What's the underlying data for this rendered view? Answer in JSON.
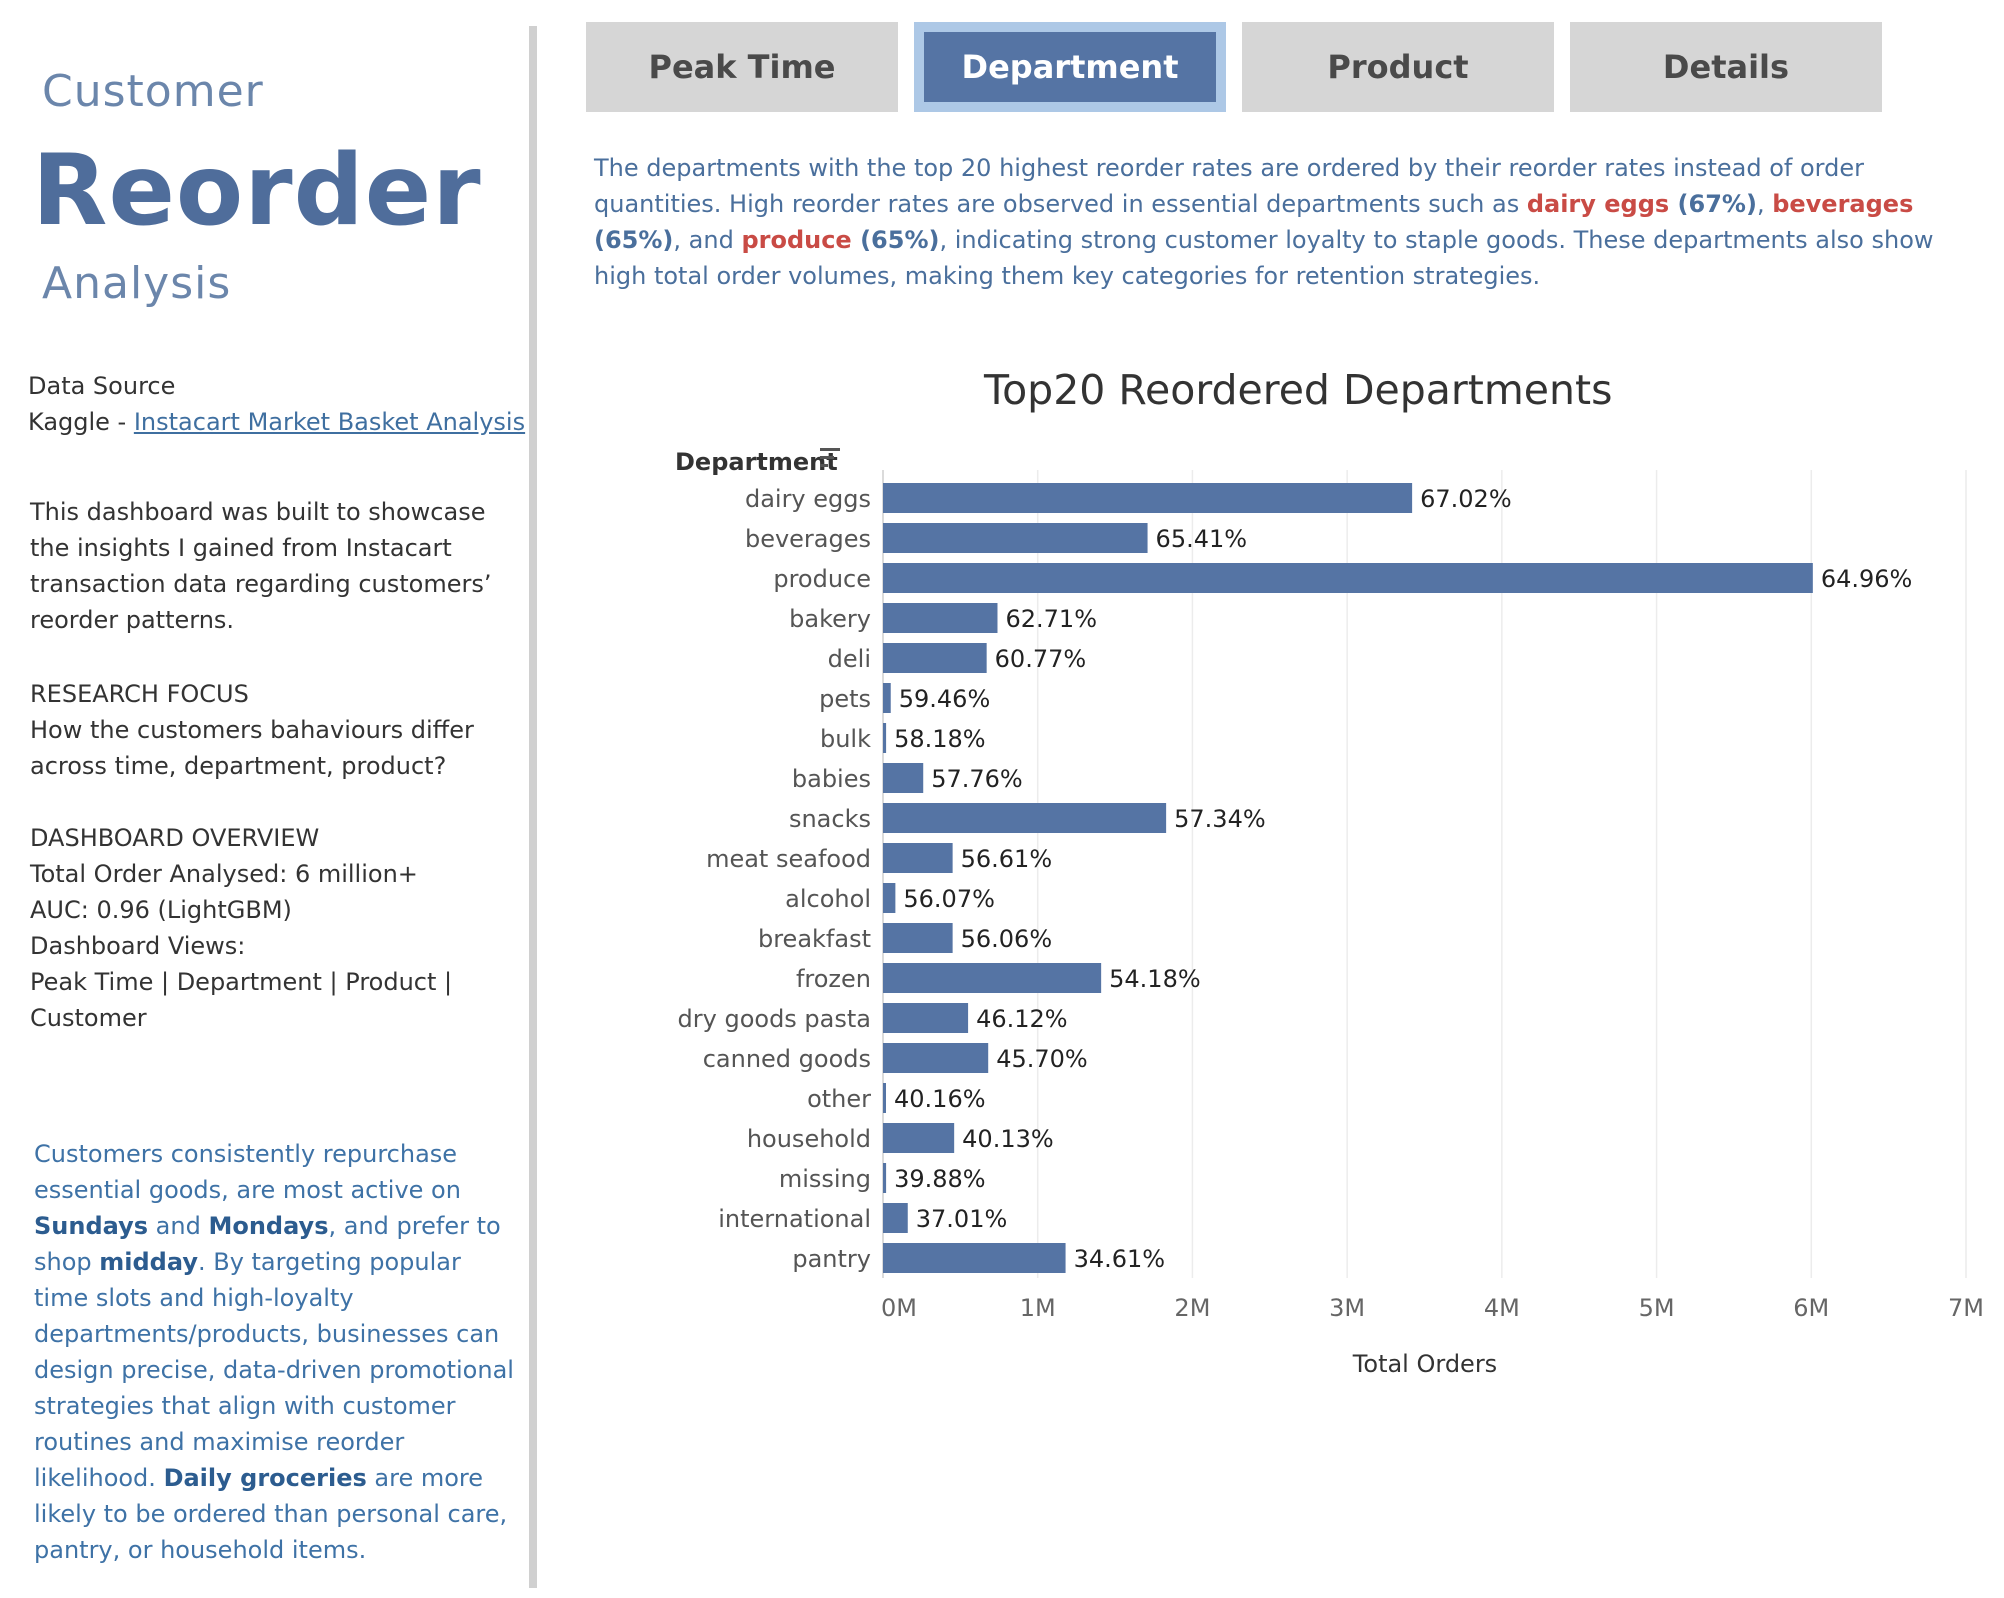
{
  "sidebar": {
    "title_line1": "Customer",
    "title_line2": "Reorder",
    "title_line3": "Analysis",
    "data_source_label": "Data Source",
    "data_source_prefix": "Kaggle - ",
    "data_source_link": "Instacart Market Basket Analysis",
    "intro": "This dashboard was built to showcase the insights I gained from Instacart transaction data regarding customers’ reorder patterns.",
    "research_focus_heading": "RESEARCH FOCUS",
    "research_focus_text": "How the customers bahaviours differ across time, department, product?",
    "overview_heading": "DASHBOARD OVERVIEW",
    "overview_total": "Total Order Analysed: 6 million+",
    "overview_auc": "AUC: 0.96 (LightGBM)",
    "overview_views_label": "Dashboard Views:",
    "overview_views": "Peak Time | Department | Product | Customer",
    "insight_1": "Customers consistently repurchase essential goods, are most active on ",
    "insight_b1": "Sundays",
    "insight_2": " and ",
    "insight_b2": "Mondays",
    "insight_3": ", and prefer to shop ",
    "insight_b3": "midday",
    "insight_4": ". By targeting popular time slots and high-loyalty departments/products, businesses can design precise, data-driven promotional strategies that align with customer routines and maximise reorder likelihood. ",
    "insight_b4": "Daily groceries",
    "insight_5": " are more likely to be ordered than personal care, pantry, or household items."
  },
  "tabs": [
    {
      "label": "Peak Time",
      "active": false
    },
    {
      "label": "Department",
      "active": true
    },
    {
      "label": "Product",
      "active": false
    },
    {
      "label": "Details",
      "active": false
    }
  ],
  "description": {
    "part1": "The departments with the top 20 highest reorder rates are ordered by their reorder rates instead of order quantities. High reorder rates are observed in essential departments such as ",
    "dept1": "dairy eggs",
    "pct1": " (67%)",
    "sep1": ", ",
    "dept2": "beverages",
    "pct2": " (65%)",
    "sep2": ", and ",
    "dept3": "produce",
    "pct3": " (65%)",
    "part2": ", indicating strong customer loyalty to staple goods. These departments also show high total order volumes, making them key categories for retention strategies."
  },
  "colors": {
    "bar": "#5574a4",
    "accent_red": "#c94b45",
    "tab_active_border": "#adc8e6",
    "tab_inactive": "#d6d6d6"
  },
  "chart_data": {
    "type": "bar",
    "orientation": "horizontal",
    "title": "Top20 Reordered Departments",
    "category_header": "Department",
    "xlabel": "Total Orders",
    "xlim": [
      0,
      7000000
    ],
    "x_ticks": [
      "0M",
      "1M",
      "2M",
      "3M",
      "4M",
      "5M",
      "6M",
      "7M"
    ],
    "grid": true,
    "categories": [
      "dairy eggs",
      "beverages",
      "produce",
      "bakery",
      "deli",
      "pets",
      "bulk",
      "babies",
      "snacks",
      "meat seafood",
      "alcohol",
      "breakfast",
      "frozen",
      "dry goods pasta",
      "canned goods",
      "other",
      "household",
      "missing",
      "international",
      "pantry"
    ],
    "values": [
      3420000,
      1710000,
      6010000,
      740000,
      670000,
      50000,
      20000,
      260000,
      1830000,
      450000,
      80000,
      450000,
      1410000,
      550000,
      680000,
      10000,
      460000,
      20000,
      160000,
      1180000
    ],
    "value_labels": [
      "67.02%",
      "65.41%",
      "64.96%",
      "62.71%",
      "60.77%",
      "59.46%",
      "58.18%",
      "57.76%",
      "57.34%",
      "56.61%",
      "56.07%",
      "56.06%",
      "54.18%",
      "46.12%",
      "45.70%",
      "40.16%",
      "40.13%",
      "39.88%",
      "37.01%",
      "34.61%"
    ]
  }
}
